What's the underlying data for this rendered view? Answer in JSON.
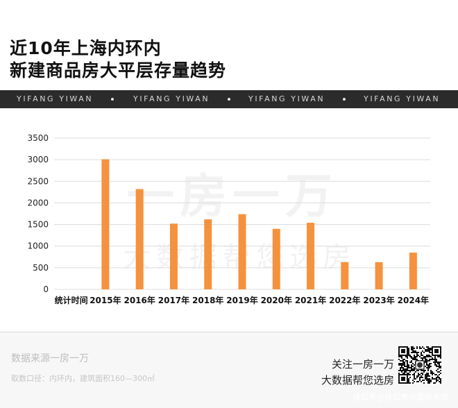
{
  "header": {
    "title_line1": "近10年上海内环内",
    "title_line2": "新建商品房大平层存量趋势"
  },
  "band": {
    "items": [
      "YIFANG YIWAN",
      "YIFANG YIWAN",
      "YIFANG YIWAN",
      "YIFANG YIWAN"
    ]
  },
  "watermark": {
    "line1": "一房一万",
    "line2": "大数据帮您选房"
  },
  "colors": {
    "bar": "#F5923E",
    "band": "#2B2B2B"
  },
  "chart_data": {
    "type": "bar",
    "first_category_label": "统计时间",
    "categories": [
      "2015年",
      "2016年",
      "2017年",
      "2018年",
      "2019年",
      "2020年",
      "2021年",
      "2022年",
      "2023年",
      "2024年"
    ],
    "values": [
      3010,
      2320,
      1520,
      1620,
      1740,
      1400,
      1540,
      630,
      630,
      850
    ],
    "ylim": [
      0,
      3500
    ],
    "yticks": [
      "0",
      "500",
      "1000",
      "1500",
      "2000",
      "2500",
      "3000",
      "3500"
    ],
    "grid": true,
    "legend": "none"
  },
  "footer": {
    "source_line": "数据来源一房一万",
    "scope_line": "取数口径：内环内，建筑面积160—300㎡",
    "follow_line1": "关注一房一万",
    "follow_line2": "大数据帮您选房",
    "credit": "搜狐号@搜狐焦点嘉峪关站"
  },
  "icons": {
    "qr": "qr-code-icon",
    "dot": "bullet-dot-icon"
  }
}
